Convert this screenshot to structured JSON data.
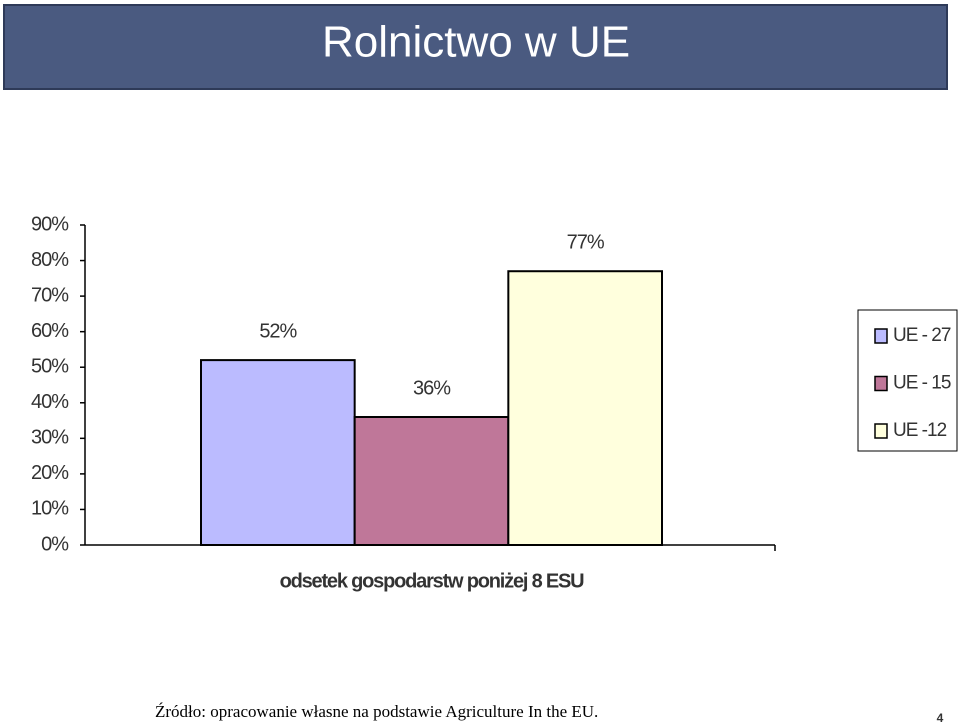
{
  "slide": {
    "title": "Rolnictwo w UE",
    "source": "Źródło: opracowanie własne na podstawie Agriculture In the EU.",
    "page_number": 4
  },
  "chart_data": {
    "type": "bar",
    "categories": [
      "odsetek gospodarstw poniżej 8 ESU"
    ],
    "series": [
      {
        "name": "UE - 27",
        "color": "#bbbbff",
        "values": [
          52
        ],
        "value_labels": [
          "52%"
        ]
      },
      {
        "name": "UE - 15",
        "color": "#bf7799",
        "values": [
          36
        ],
        "value_labels": [
          "36%"
        ]
      },
      {
        "name": "UE -12",
        "color": "#ffffdd",
        "values": [
          77
        ],
        "value_labels": [
          "77%"
        ]
      }
    ],
    "ylim": [
      0,
      90
    ],
    "yticks": [
      {
        "value": 0,
        "label": "0%"
      },
      {
        "value": 10,
        "label": "10%"
      },
      {
        "value": 20,
        "label": "20%"
      },
      {
        "value": 30,
        "label": "30%"
      },
      {
        "value": 40,
        "label": "40%"
      },
      {
        "value": 50,
        "label": "50%"
      },
      {
        "value": 60,
        "label": "60%"
      },
      {
        "value": 70,
        "label": "70%"
      },
      {
        "value": 80,
        "label": "80%"
      },
      {
        "value": 90,
        "label": "90%"
      }
    ],
    "grid": false,
    "legend": "right"
  }
}
